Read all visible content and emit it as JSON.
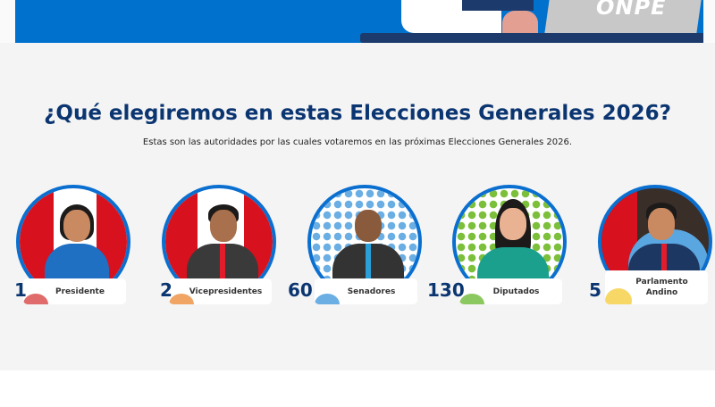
{
  "banner": {
    "logo_text": "ONPE",
    "colors": {
      "primary": "#0072ce",
      "navy": "#1c3a6b"
    }
  },
  "section": {
    "title": "¿Qué elegiremos en estas Elecciones Generales 2026?",
    "subtitle": "Estas son las autoridades por las cuales votaremos en las próximas Elecciones Generales 2026."
  },
  "authorities": [
    {
      "count": "1",
      "label": "Presidente",
      "accent": "#e06b6b"
    },
    {
      "count": "2",
      "label": "Vicepresidentes",
      "accent": "#f0a565"
    },
    {
      "count": "60",
      "label": "Senadores",
      "accent": "#6aaee3"
    },
    {
      "count": "130",
      "label": "Diputados",
      "accent": "#8cc860"
    },
    {
      "count": "5",
      "label": "Parlamento Andino",
      "accent": "#f7d867"
    }
  ]
}
